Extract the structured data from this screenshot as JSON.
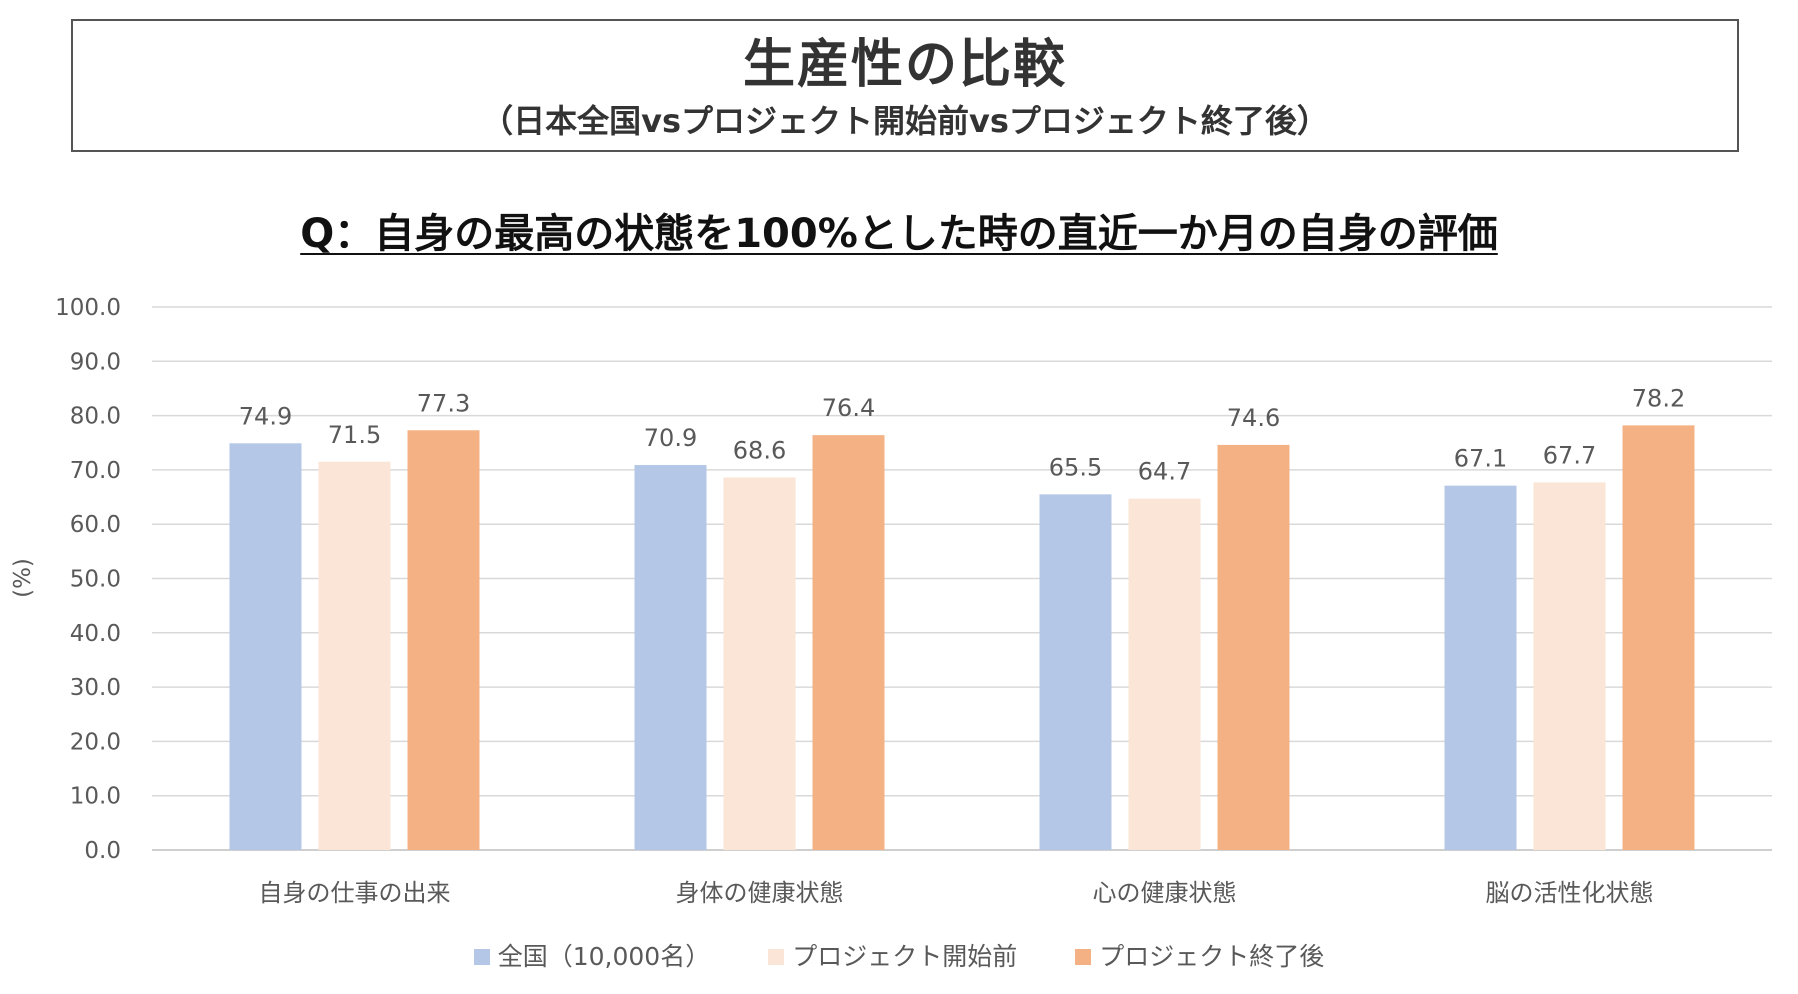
{
  "header": {
    "title": "生産性の比較",
    "subtitle": "（日本全国vsプロジェクト開始前vsプロジェクト終了後）"
  },
  "chart_data": {
    "type": "bar",
    "title": "Q：自身の最高の状態を100%とした時の直近一か月の自身の評価",
    "ylabel": "(%)",
    "xlabel": "",
    "ylim": [
      0,
      100
    ],
    "y_ticks": [
      "0.0",
      "10.0",
      "20.0",
      "30.0",
      "40.0",
      "50.0",
      "60.0",
      "70.0",
      "80.0",
      "90.0",
      "100.0"
    ],
    "grid": true,
    "legend_position": "bottom",
    "categories": [
      "自身の仕事の出来",
      "身体の健康状態",
      "心の健康状態",
      "脳の活性化状態"
    ],
    "series": [
      {
        "name": "全国（10,000名）",
        "color": "#b4c7e7",
        "values": [
          74.9,
          70.9,
          65.5,
          67.1
        ],
        "labels": [
          "74.9",
          "70.9",
          "65.5",
          "67.1"
        ]
      },
      {
        "name": "プロジェクト開始前",
        "color": "#fbe5d6",
        "values": [
          71.5,
          68.6,
          64.7,
          67.7
        ],
        "labels": [
          "71.5",
          "68.6",
          "64.7",
          "67.7"
        ]
      },
      {
        "name": "プロジェクト終了後",
        "color": "#f4b183",
        "values": [
          77.3,
          76.4,
          74.6,
          78.2
        ],
        "labels": [
          "77.3",
          "76.4",
          "74.6",
          "78.2"
        ]
      }
    ]
  }
}
